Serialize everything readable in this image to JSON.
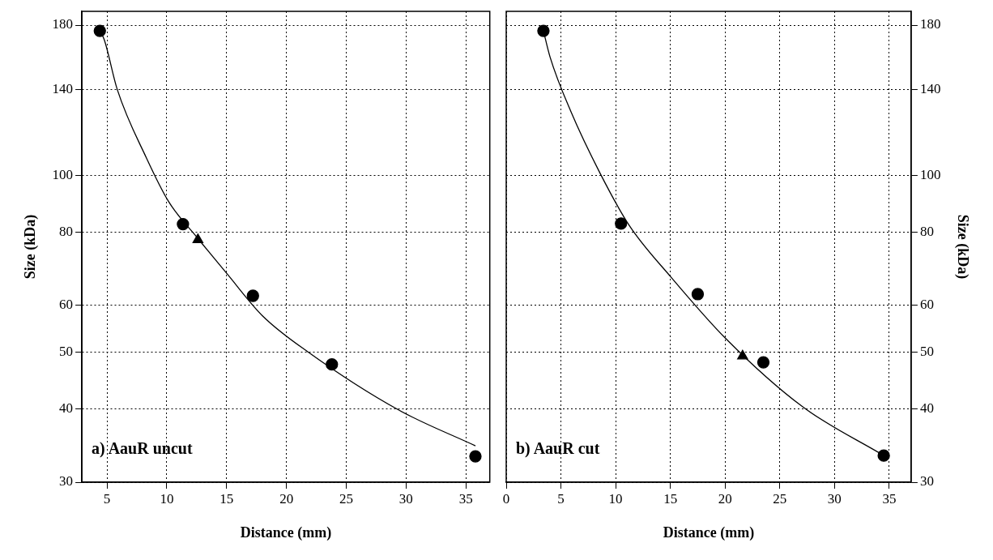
{
  "chart_data": [
    {
      "type": "scatter",
      "xlabel": "Distance (mm)",
      "ylabel": "Size (kDa)",
      "xlim": [
        2.9,
        37
      ],
      "xticks": [
        5,
        10,
        15,
        20,
        25,
        30,
        35
      ],
      "ylim": [
        30,
        190
      ],
      "yticks": [
        30,
        40,
        50,
        60,
        80,
        100,
        140,
        180
      ],
      "log": "y",
      "grid": true,
      "annotations": [
        "a) AauR uncut"
      ],
      "series": [
        {
          "type": "line",
          "color": "#000000",
          "marker": "none",
          "line_style": "solid",
          "x": [
            4.4,
            4.77,
            5.85,
            8.29,
            10.17,
            12.6,
            15.04,
            18.0,
            21.8,
            29.4,
            35.8
          ],
          "values": [
            176,
            170,
            140,
            107,
            90,
            78,
            67.9,
            57.6,
            50.0,
            39.8,
            34.6
          ]
        },
        {
          "type": "scatter",
          "color": "#000000",
          "marker": "circle",
          "x": [
            4.4,
            11.35,
            17.2,
            23.8,
            35.8
          ],
          "values": [
            176,
            82.5,
            62.3,
            47.6,
            33.2
          ]
        },
        {
          "type": "scatter",
          "color": "#000000",
          "marker": "triangle",
          "x": [
            12.6
          ],
          "values": [
            77.6
          ]
        }
      ]
    },
    {
      "type": "scatter",
      "xlabel": "Distance (mm)",
      "y2label": "Size (kDa)",
      "xlim": [
        0,
        37
      ],
      "xticks": [
        0,
        5,
        10,
        15,
        20,
        25,
        30,
        35
      ],
      "y2lim": [
        30,
        190
      ],
      "y2ticks": [
        30,
        40,
        50,
        60,
        80,
        100,
        140,
        180
      ],
      "log": "y2",
      "grid": true,
      "annotations": [
        "b) AauR cut"
      ],
      "series": [
        {
          "type": "line",
          "axis": "y2",
          "color": "#000000",
          "marker": "none",
          "line_style": "solid",
          "x": [
            3.4,
            4.0,
            5.93,
            8.58,
            11.24,
            15.07,
            20.1,
            27.1,
            34.5
          ],
          "values": [
            176,
            159,
            128,
            100.7,
            82.1,
            67.0,
            52.6,
            40.3,
            33.3
          ]
        },
        {
          "type": "scatter",
          "axis": "y2",
          "color": "#000000",
          "marker": "circle",
          "x": [
            3.4,
            10.49,
            17.5,
            23.5,
            34.5
          ],
          "values": [
            176,
            82.7,
            62.7,
            48.0,
            33.3
          ]
        },
        {
          "type": "scatter",
          "axis": "y2",
          "color": "#000000",
          "marker": "triangle",
          "x": [
            21.6
          ],
          "values": [
            49.2
          ]
        }
      ]
    }
  ]
}
